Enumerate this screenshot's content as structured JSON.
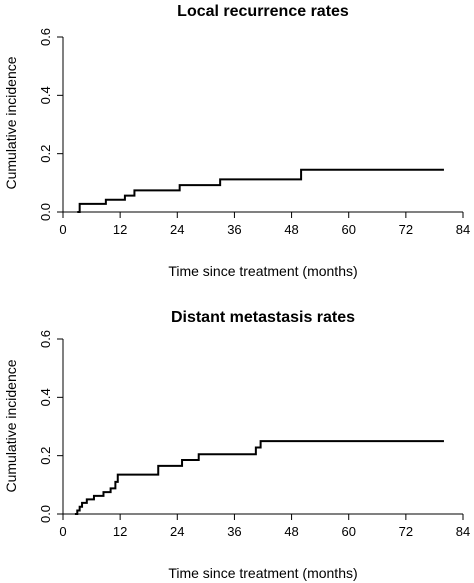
{
  "chart_data": [
    {
      "type": "line",
      "step": "post",
      "title": "Local recurrence rates",
      "xlabel": "Time since treatment (months)",
      "ylabel": "Cumulative incidence",
      "xlim": [
        0,
        84
      ],
      "ylim": [
        0,
        0.6
      ],
      "xticks": [
        0,
        12,
        24,
        36,
        48,
        60,
        72,
        84
      ],
      "yticks": [
        0.0,
        0.2,
        0.4,
        0.6
      ],
      "ytick_labels": [
        "0.0",
        "0.2",
        "0.4",
        "0.6"
      ],
      "grid": false,
      "series": [
        {
          "x": [
            3,
            3.5,
            9,
            13,
            15,
            24.5,
            33,
            50,
            80
          ],
          "y": [
            0,
            0.028,
            0.042,
            0.056,
            0.074,
            0.092,
            0.112,
            0.145,
            0.145
          ]
        }
      ]
    },
    {
      "type": "line",
      "step": "post",
      "title": "Distant metastasis rates",
      "xlabel": "Time since treatment (months)",
      "ylabel": "Cumulative incidence",
      "xlim": [
        0,
        84
      ],
      "ylim": [
        0,
        0.6
      ],
      "xticks": [
        0,
        12,
        24,
        36,
        48,
        60,
        72,
        84
      ],
      "yticks": [
        0.0,
        0.2,
        0.4,
        0.6
      ],
      "ytick_labels": [
        "0.0",
        "0.2",
        "0.4",
        "0.6"
      ],
      "grid": false,
      "series": [
        {
          "x": [
            2.5,
            3,
            3.5,
            4,
            5,
            6.5,
            8.5,
            10,
            11,
            11.5,
            20,
            25,
            28.5,
            40.5,
            41.5,
            80
          ],
          "y": [
            0,
            0.012,
            0.025,
            0.038,
            0.05,
            0.062,
            0.075,
            0.088,
            0.11,
            0.135,
            0.165,
            0.185,
            0.205,
            0.228,
            0.25,
            0.25
          ]
        }
      ]
    }
  ]
}
